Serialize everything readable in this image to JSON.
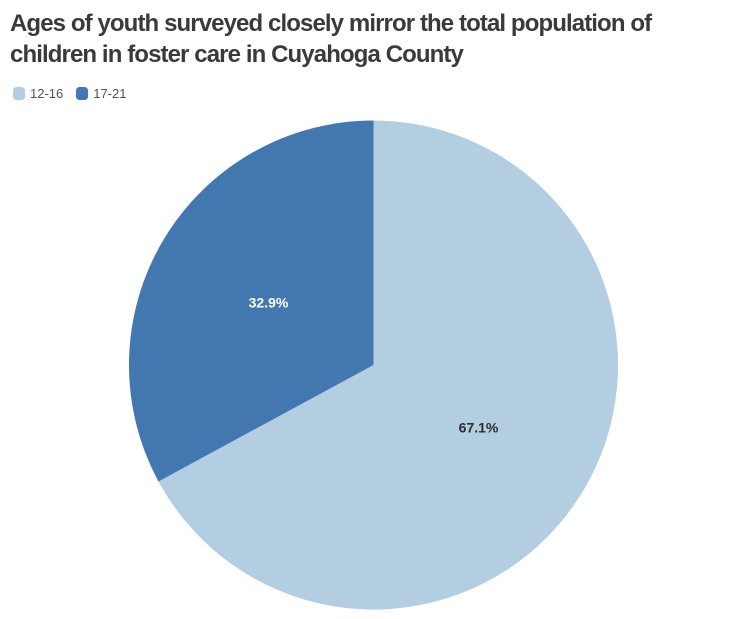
{
  "header": {
    "title": "Ages of youth surveyed closely mirror the total population of children in foster care in Cuyahoga County",
    "title_lines": [
      "Ages of youth surveyed closely mirror the total population of",
      "children in foster care in Cuyahoga County"
    ],
    "title_color": "#3a3a3a"
  },
  "chart_data": {
    "type": "pie",
    "title": "Ages of youth surveyed closely mirror the total population of children in foster care in Cuyahoga County",
    "unit": "%",
    "start_angle": "12 o'clock",
    "direction": "clockwise",
    "legend_position": "top-left",
    "categories": [
      "12-16",
      "17-21"
    ],
    "values": [
      67.1,
      32.9
    ],
    "slices": [
      {
        "label": "12-16",
        "value": 67.1,
        "display": "67.1%",
        "color": "#b3cde1",
        "text_color": "#2d2d2d"
      },
      {
        "label": "17-21",
        "value": 32.9,
        "display": "32.9%",
        "color": "#4377b0",
        "text_color": "#ffffff"
      }
    ]
  }
}
